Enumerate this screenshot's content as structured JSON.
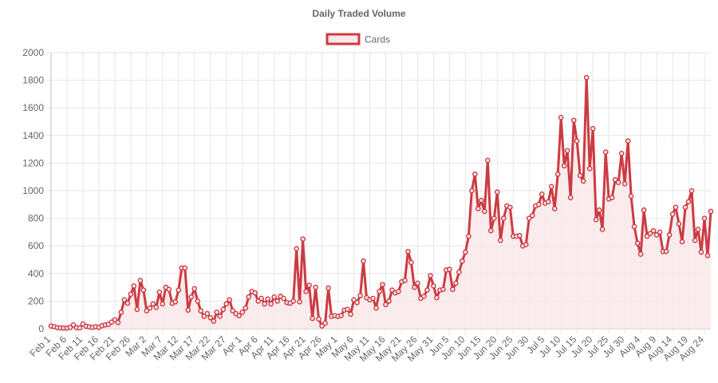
{
  "chart_data": {
    "type": "line",
    "title": "Daily Traded Volume",
    "legend_position": "top",
    "grid": true,
    "fill": true,
    "xlabel": "",
    "ylabel": "",
    "ylim": [
      0,
      2000
    ],
    "yticks": [
      0,
      200,
      400,
      600,
      800,
      1000,
      1200,
      1400,
      1600,
      1800,
      2000
    ],
    "x_tick_labels": [
      "Feb 1",
      "Feb 6",
      "Feb 11",
      "Feb 16",
      "Feb 21",
      "Feb 26",
      "Mar 2",
      "Mar 7",
      "Mar 12",
      "Mar 17",
      "Mar 22",
      "Mar 27",
      "Apr 1",
      "Apr 6",
      "Apr 11",
      "Apr 16",
      "Apr 21",
      "Apr 26",
      "May 1",
      "May 6",
      "May 11",
      "May 16",
      "May 21",
      "May 26",
      "May 31",
      "Jun 5",
      "Jun 10",
      "Jun 15",
      "Jun 20",
      "Jun 25",
      "Jun 30",
      "Jul 5",
      "Jul 10",
      "Jul 15",
      "Jul 20",
      "Jul 25",
      "Jul 30",
      "Aug 4",
      "Aug 9",
      "Aug 14",
      "Aug 19",
      "Aug 24"
    ],
    "line_color": "#cc3b42",
    "fill_color": "#f9e8ea",
    "series": [
      {
        "name": "Cards",
        "values": [
          20,
          15,
          8,
          6,
          5,
          5,
          10,
          28,
          8,
          6,
          35,
          18,
          14,
          10,
          15,
          10,
          22,
          28,
          32,
          48,
          65,
          45,
          120,
          210,
          185,
          250,
          310,
          140,
          350,
          280,
          130,
          150,
          180,
          155,
          265,
          180,
          300,
          285,
          185,
          195,
          280,
          440,
          440,
          135,
          230,
          290,
          200,
          130,
          90,
          110,
          80,
          55,
          120,
          90,
          140,
          180,
          210,
          130,
          110,
          95,
          120,
          150,
          230,
          270,
          260,
          200,
          220,
          180,
          215,
          180,
          230,
          200,
          235,
          220,
          190,
          185,
          200,
          580,
          195,
          650,
          270,
          315,
          75,
          300,
          70,
          20,
          40,
          295,
          90,
          95,
          90,
          95,
          135,
          140,
          105,
          210,
          190,
          240,
          490,
          225,
          210,
          220,
          150,
          270,
          320,
          175,
          200,
          280,
          260,
          270,
          340,
          350,
          560,
          480,
          300,
          330,
          220,
          235,
          280,
          385,
          310,
          225,
          280,
          285,
          425,
          430,
          285,
          330,
          410,
          490,
          555,
          670,
          1000,
          1120,
          870,
          930,
          850,
          1220,
          710,
          800,
          990,
          640,
          800,
          890,
          880,
          670,
          670,
          675,
          600,
          610,
          800,
          820,
          890,
          900,
          975,
          910,
          920,
          1030,
          870,
          1120,
          1530,
          1180,
          1290,
          950,
          1510,
          1360,
          1110,
          1070,
          1820,
          1160,
          1450,
          790,
          860,
          720,
          1280,
          940,
          950,
          1080,
          1060,
          1270,
          1050,
          1360,
          960,
          740,
          620,
          540,
          860,
          670,
          690,
          710,
          680,
          700,
          560,
          560,
          680,
          830,
          880,
          760,
          630,
          880,
          920,
          1000,
          640,
          720,
          555,
          800,
          530,
          850
        ]
      }
    ]
  }
}
